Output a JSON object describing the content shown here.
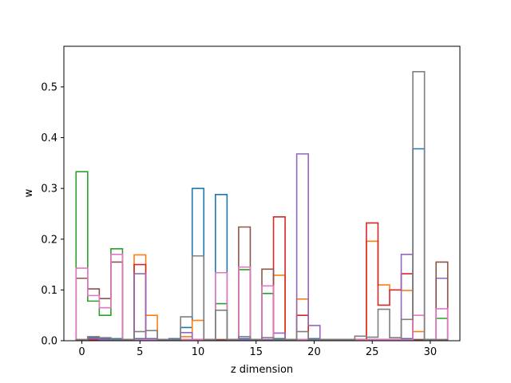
{
  "chart_data": {
    "type": "step",
    "title": "",
    "xlabel": "z dimension",
    "ylabel": "w",
    "xlim": [
      -1.55,
      32.55
    ],
    "ylim": [
      0,
      0.58
    ],
    "xticks": [
      0,
      5,
      10,
      15,
      20,
      25,
      30
    ],
    "yticks": [
      0.0,
      0.1,
      0.2,
      0.3,
      0.4,
      0.5
    ],
    "ytick_labels": [
      "0.0",
      "0.1",
      "0.2",
      "0.3",
      "0.4",
      "0.5"
    ],
    "grid": false,
    "bins": 32,
    "series": [
      {
        "color": "#1f77b4",
        "values": [
          0.002,
          0.006,
          0.004,
          0.004,
          0.002,
          0.004,
          0.004,
          0.002,
          0.004,
          0.026,
          0.3,
          0.002,
          0.288,
          0.002,
          0.004,
          0.002,
          0.002,
          0.004,
          0.002,
          0.002,
          0.004,
          0.002,
          0.002,
          0.002,
          0.002,
          0.002,
          0.002,
          0.002,
          0.004,
          0.378,
          0.002,
          0.002
        ]
      },
      {
        "color": "#ff7f0e",
        "values": [
          0.002,
          0.002,
          0.002,
          0.002,
          0.002,
          0.169,
          0.05,
          0.002,
          0.002,
          0.008,
          0.04,
          0.002,
          0.002,
          0.002,
          0.002,
          0.002,
          0.002,
          0.129,
          0.002,
          0.082,
          0.002,
          0.002,
          0.002,
          0.002,
          0.002,
          0.196,
          0.11,
          0.1,
          0.099,
          0.018,
          0.002,
          0.002
        ]
      },
      {
        "color": "#2ca02c",
        "values": [
          0.333,
          0.078,
          0.05,
          0.181,
          0.002,
          0.002,
          0.002,
          0.002,
          0.002,
          0.002,
          0.002,
          0.002,
          0.073,
          0.002,
          0.14,
          0.002,
          0.093,
          0.002,
          0.002,
          0.002,
          0.002,
          0.002,
          0.002,
          0.002,
          0.002,
          0.002,
          0.002,
          0.002,
          0.002,
          0.002,
          0.002,
          0.044
        ]
      },
      {
        "color": "#d62728",
        "values": [
          0.002,
          0.002,
          0.002,
          0.002,
          0.002,
          0.15,
          0.002,
          0.002,
          0.002,
          0.002,
          0.002,
          0.002,
          0.002,
          0.002,
          0.002,
          0.002,
          0.002,
          0.244,
          0.002,
          0.05,
          0.002,
          0.002,
          0.002,
          0.002,
          0.002,
          0.232,
          0.07,
          0.1,
          0.132,
          0.002,
          0.002,
          0.002
        ]
      },
      {
        "color": "#9467bd",
        "values": [
          0.002,
          0.004,
          0.002,
          0.002,
          0.002,
          0.132,
          0.002,
          0.002,
          0.002,
          0.016,
          0.002,
          0.002,
          0.002,
          0.002,
          0.002,
          0.002,
          0.002,
          0.015,
          0.002,
          0.368,
          0.03,
          0.002,
          0.002,
          0.002,
          0.002,
          0.002,
          0.002,
          0.002,
          0.17,
          0.002,
          0.002,
          0.123
        ]
      },
      {
        "color": "#8c564b",
        "values": [
          0.123,
          0.102,
          0.083,
          0.155,
          0.002,
          0.002,
          0.002,
          0.002,
          0.002,
          0.002,
          0.002,
          0.002,
          0.002,
          0.002,
          0.224,
          0.002,
          0.141,
          0.002,
          0.002,
          0.002,
          0.002,
          0.002,
          0.002,
          0.002,
          0.002,
          0.002,
          0.002,
          0.002,
          0.002,
          0.002,
          0.002,
          0.155
        ]
      },
      {
        "color": "#e377c2",
        "values": [
          0.143,
          0.089,
          0.065,
          0.17,
          0.002,
          0.002,
          0.002,
          0.002,
          0.002,
          0.002,
          0.002,
          0.002,
          0.134,
          0.002,
          0.145,
          0.002,
          0.108,
          0.002,
          0.002,
          0.002,
          0.002,
          0.002,
          0.002,
          0.002,
          0.002,
          0.002,
          0.002,
          0.002,
          0.002,
          0.05,
          0.002,
          0.063
        ]
      },
      {
        "color": "#7f7f7f",
        "values": [
          0.002,
          0.008,
          0.006,
          0.002,
          0.002,
          0.018,
          0.02,
          0.002,
          0.002,
          0.047,
          0.167,
          0.002,
          0.06,
          0.002,
          0.008,
          0.002,
          0.006,
          0.002,
          0.002,
          0.018,
          0.002,
          0.002,
          0.002,
          0.002,
          0.009,
          0.007,
          0.062,
          0.006,
          0.042,
          0.53,
          0.002,
          0.002
        ]
      }
    ]
  }
}
